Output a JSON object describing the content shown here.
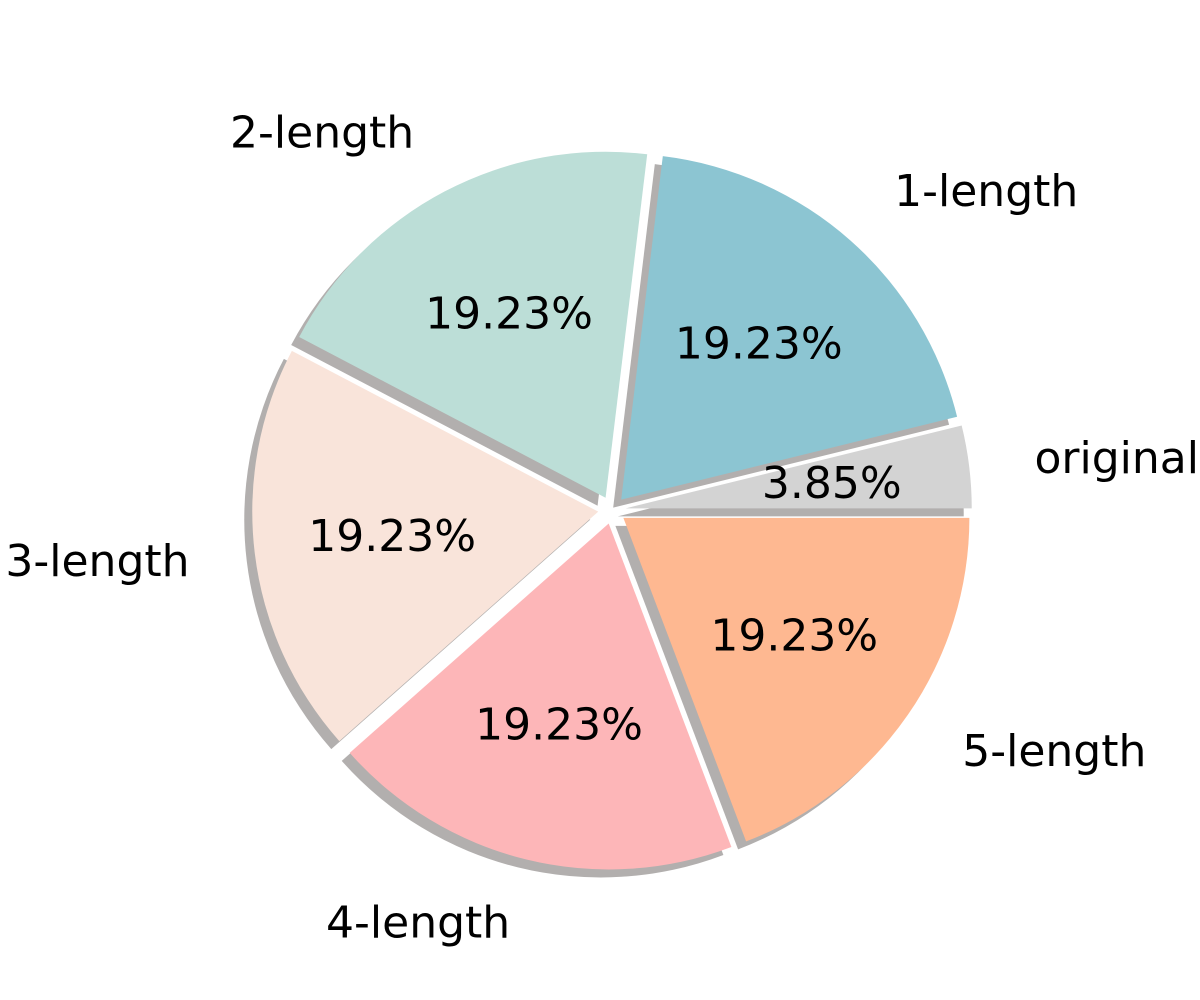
{
  "chart_data": {
    "type": "pie",
    "slices": [
      {
        "label": "original",
        "value": 3.85,
        "pct_label": "3.85%",
        "color": "#d3d3d3"
      },
      {
        "label": "1-length",
        "value": 19.23,
        "pct_label": "19.23%",
        "color": "#8cc5d2"
      },
      {
        "label": "2-length",
        "value": 19.23,
        "pct_label": "19.23%",
        "color": "#bcded7"
      },
      {
        "label": "3-length",
        "value": 19.23,
        "pct_label": "19.23%",
        "color": "#f9e4da"
      },
      {
        "label": "4-length",
        "value": 19.23,
        "pct_label": "19.23%",
        "color": "#fdb6b8"
      },
      {
        "label": "5-length",
        "value": 19.23,
        "pct_label": "19.23%",
        "color": "#feb891"
      }
    ],
    "start_angle_deg": 0,
    "direction": "counterclockwise",
    "exploded": true,
    "shadow": true,
    "legend": "none"
  }
}
